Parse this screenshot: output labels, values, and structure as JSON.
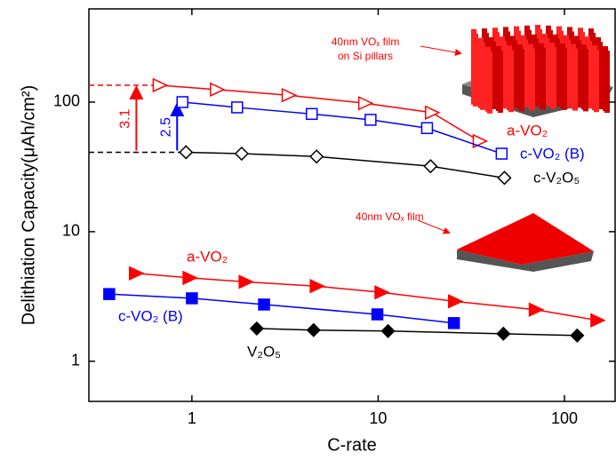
{
  "chart_data": {
    "type": "scatter-line",
    "x_label": "C-rate",
    "y_label": "Delithiation Capacity(μAh/cm²)",
    "xscale": "log",
    "yscale": "log",
    "xlim": [
      0.28,
      187
    ],
    "ylim": [
      0.49,
      524
    ],
    "xticks": [
      1,
      10,
      100
    ],
    "yticks": [
      1,
      10,
      100
    ],
    "series": [
      {
        "name": "a-VO₂",
        "color": "#ff0000",
        "marker": "triangle-right",
        "filled": false,
        "x": [
          0.67,
          1.36,
          3.3,
          8.5,
          19.4,
          35
        ],
        "values": [
          135,
          125,
          113,
          98,
          83,
          50
        ]
      },
      {
        "name": "c-VO₂ (B)",
        "color": "#0000ff",
        "marker": "square",
        "filled": false,
        "x": [
          0.89,
          1.75,
          4.4,
          9.1,
          18.3,
          46
        ],
        "values": [
          100,
          91,
          81,
          73,
          63,
          40
        ]
      },
      {
        "name": "c-V₂O₅",
        "color": "#000000",
        "marker": "diamond",
        "filled": false,
        "x": [
          0.93,
          1.85,
          4.67,
          19.1,
          47.6
        ],
        "values": [
          41,
          40,
          38,
          32,
          26
        ]
      },
      {
        "name": "a-VO₂",
        "color": "#ff0000",
        "marker": "triangle-right",
        "filled": true,
        "x": [
          0.5,
          0.97,
          1.94,
          4.67,
          10.4,
          25.8,
          70,
          150
        ],
        "values": [
          4.77,
          4.4,
          4.1,
          3.8,
          3.4,
          2.9,
          2.5,
          2.07
        ]
      },
      {
        "name": "c-VO₂ (B)",
        "color": "#0000ff",
        "marker": "square",
        "filled": true,
        "x": [
          0.36,
          1.0,
          2.44,
          9.9,
          25.5
        ],
        "values": [
          3.3,
          3.06,
          2.74,
          2.3,
          1.97
        ]
      },
      {
        "name": "V₂O₅",
        "color": "#000000",
        "marker": "diamond",
        "filled": true,
        "x": [
          2.23,
          4.5,
          11.3,
          47,
          117
        ],
        "values": [
          1.79,
          1.74,
          1.71,
          1.63,
          1.58
        ]
      }
    ],
    "annotations": [
      "3.1",
      "2.5",
      "40nm VOₓ film",
      "on Si pillars",
      "40nm VOₓ film"
    ]
  }
}
